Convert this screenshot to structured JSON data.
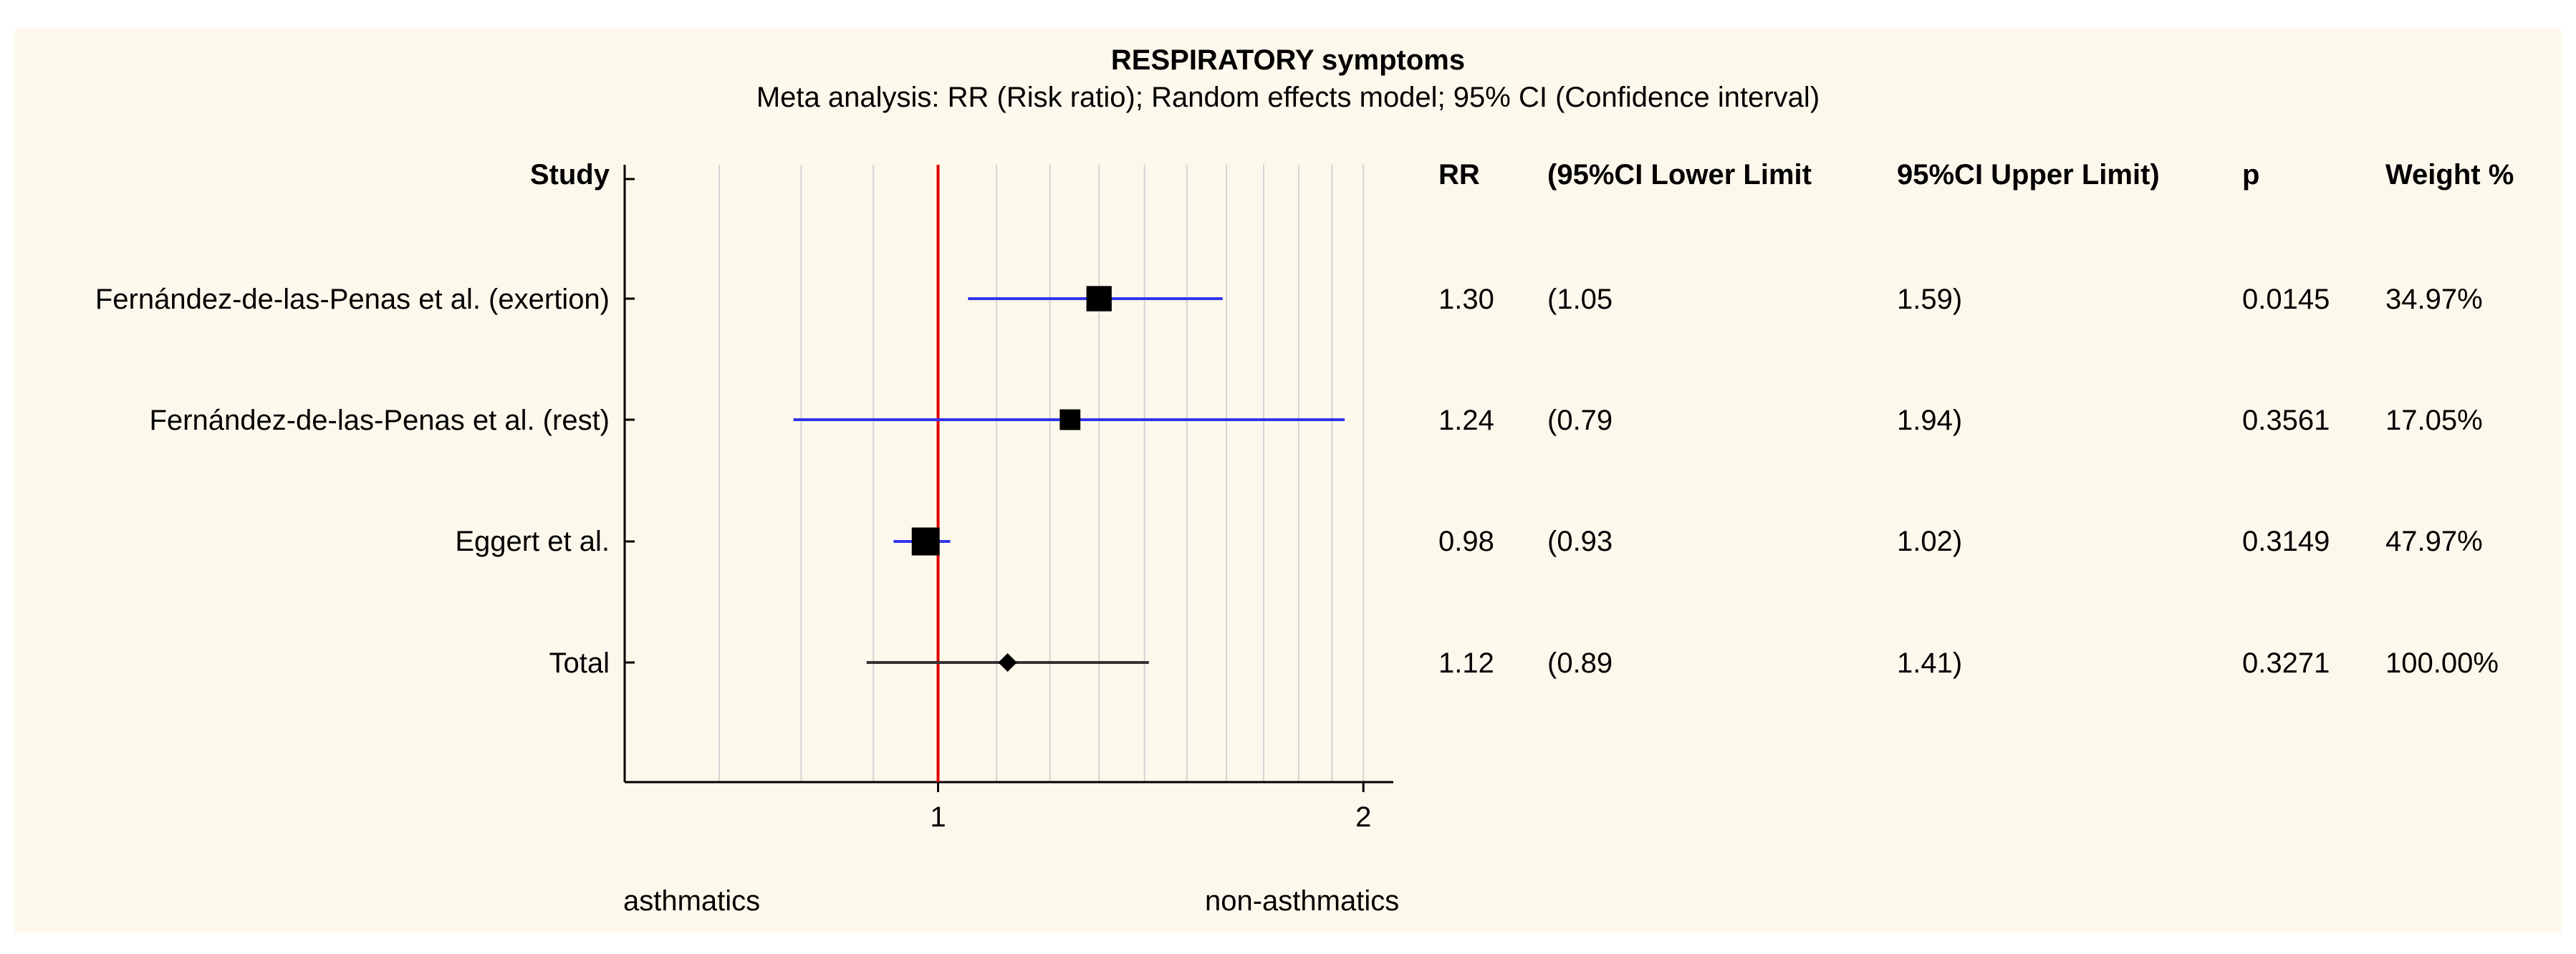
{
  "chart_data": {
    "type": "forest",
    "title": "RESPIRATORY symptoms",
    "subtitle": "Meta analysis: RR (Risk ratio); Random effects model; 95% CI (Confidence interval)",
    "columns": {
      "study": "Study",
      "rr": "RR",
      "lower": "(95%CI Lower Limit",
      "upper": "95%CI Upper Limit)",
      "p": "p",
      "weight": "Weight  %"
    },
    "rows": [
      {
        "study": "Fernández-de-las-Penas et al. (exertion)",
        "rr": 1.3,
        "lower": 1.05,
        "upper": 1.59,
        "rr_text": "1.30",
        "lower_text": "(1.05",
        "upper_text": "1.59)",
        "p": "0.0145",
        "weight": "34.97%",
        "weight_value": 34.97,
        "marker": "square"
      },
      {
        "study": "Fernández-de-las-Penas et al. (rest)",
        "rr": 1.24,
        "lower": 0.79,
        "upper": 1.94,
        "rr_text": "1.24",
        "lower_text": "(0.79",
        "upper_text": "1.94)",
        "p": "0.3561",
        "weight": "17.05%",
        "weight_value": 17.05,
        "marker": "square"
      },
      {
        "study": "Eggert et al.",
        "rr": 0.98,
        "lower": 0.93,
        "upper": 1.02,
        "rr_text": "0.98",
        "lower_text": "(0.93",
        "upper_text": "1.02)",
        "p": "0.3149",
        "weight": "47.97%",
        "weight_value": 47.97,
        "marker": "square"
      },
      {
        "study": "Total",
        "rr": 1.12,
        "lower": 0.89,
        "upper": 1.41,
        "rr_text": "1.12",
        "lower_text": "(0.89",
        "upper_text": "1.41)",
        "p": "0.3271",
        "weight": "100.00%",
        "weight_value": 100.0,
        "marker": "diamond"
      }
    ],
    "x_scale": "log",
    "xlim": [
      0.6,
      2.1
    ],
    "x_ticks": [
      1,
      2
    ],
    "x_tick_labels": [
      "1",
      "2"
    ],
    "reference_line": 1,
    "gridlines": [
      0.7,
      0.8,
      0.9,
      1,
      1.1,
      1.2,
      1.3,
      1.4,
      1.5,
      1.6,
      1.7,
      1.8,
      1.9,
      2
    ],
    "left_label": "asthmatics",
    "right_label": "non-asthmatics",
    "colors": {
      "ci_line": "#3333ee",
      "total_line": "#333333",
      "reference": "#e00000",
      "grid": "#d4d4d4",
      "marker": "#000000",
      "background": "#fdf8ec"
    }
  }
}
